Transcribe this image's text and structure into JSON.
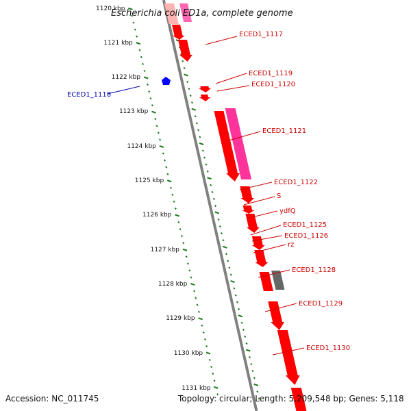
{
  "title": "Escherichia coli ED1a, complete genome",
  "footer": {
    "accession": "Accession: NC_011745",
    "summary": "Topology: circular; Length: 5,209,548 bp; Genes: 5,118"
  },
  "colors": {
    "backbone": "#808080",
    "tick": "#1f7a1f",
    "forward_gene": "#ff0000",
    "reverse_gene": "#0000ff",
    "pink_feature": "#ff3399",
    "grey_feature": "#666666",
    "label_red": "#cc0000",
    "label_blue": "#0000aa"
  },
  "scale": {
    "unit": "kbp",
    "ticks": [
      "1120 kbp",
      "1121 kbp",
      "1122 kbp",
      "1123 kbp",
      "1124 kbp",
      "1125 kbp",
      "1126 kbp",
      "1127 kbp",
      "1128 kbp",
      "1129 kbp",
      "1130 kbp",
      "1131 kbp"
    ]
  },
  "gene_labels": [
    {
      "text": "ECED1_1117",
      "color": "#cc0000"
    },
    {
      "text": "ECED1_1119",
      "color": "#cc0000"
    },
    {
      "text": "ECED1_1120",
      "color": "#cc0000"
    },
    {
      "text": "ECED1_1118",
      "color": "#0000aa"
    },
    {
      "text": "ECED1_1121",
      "color": "#cc0000"
    },
    {
      "text": "ECED1_1122",
      "color": "#cc0000"
    },
    {
      "text": "S",
      "color": "#cc0000"
    },
    {
      "text": "ydfQ",
      "color": "#cc0000"
    },
    {
      "text": "ECED1_1125",
      "color": "#cc0000"
    },
    {
      "text": "ECED1_1126",
      "color": "#cc0000"
    },
    {
      "text": "rz",
      "color": "#cc0000"
    },
    {
      "text": "ECED1_1128",
      "color": "#cc0000"
    },
    {
      "text": "ECED1_1129",
      "color": "#cc0000"
    },
    {
      "text": "ECED1_1130",
      "color": "#cc0000"
    }
  ]
}
